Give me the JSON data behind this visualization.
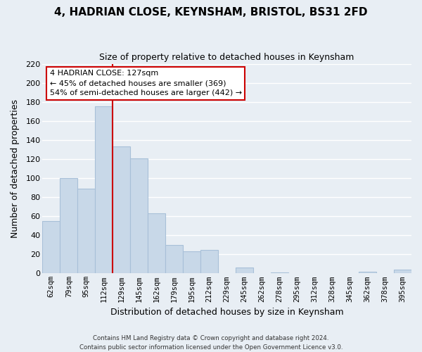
{
  "title": "4, HADRIAN CLOSE, KEYNSHAM, BRISTOL, BS31 2FD",
  "subtitle": "Size of property relative to detached houses in Keynsham",
  "xlabel": "Distribution of detached houses by size in Keynsham",
  "ylabel": "Number of detached properties",
  "bar_color": "#c8d8e8",
  "bar_edge_color": "#a8c0d8",
  "categories": [
    "62sqm",
    "79sqm",
    "95sqm",
    "112sqm",
    "129sqm",
    "145sqm",
    "162sqm",
    "179sqm",
    "195sqm",
    "212sqm",
    "229sqm",
    "245sqm",
    "262sqm",
    "278sqm",
    "295sqm",
    "312sqm",
    "328sqm",
    "345sqm",
    "362sqm",
    "378sqm",
    "395sqm"
  ],
  "values": [
    55,
    100,
    89,
    175,
    133,
    121,
    63,
    30,
    23,
    25,
    0,
    6,
    0,
    1,
    0,
    0,
    0,
    0,
    2,
    0,
    4
  ],
  "ylim": [
    0,
    220
  ],
  "yticks": [
    0,
    20,
    40,
    60,
    80,
    100,
    120,
    140,
    160,
    180,
    200,
    220
  ],
  "vline_index": 3.5,
  "annotation_title": "4 HADRIAN CLOSE: 127sqm",
  "annotation_line1": "← 45% of detached houses are smaller (369)",
  "annotation_line2": "54% of semi-detached houses are larger (442) →",
  "vline_color": "#cc0000",
  "annotation_box_facecolor": "#ffffff",
  "annotation_box_edgecolor": "#cc0000",
  "footer_line1": "Contains HM Land Registry data © Crown copyright and database right 2024.",
  "footer_line2": "Contains public sector information licensed under the Open Government Licence v3.0.",
  "background_color": "#e8eef4",
  "grid_color": "#ffffff"
}
